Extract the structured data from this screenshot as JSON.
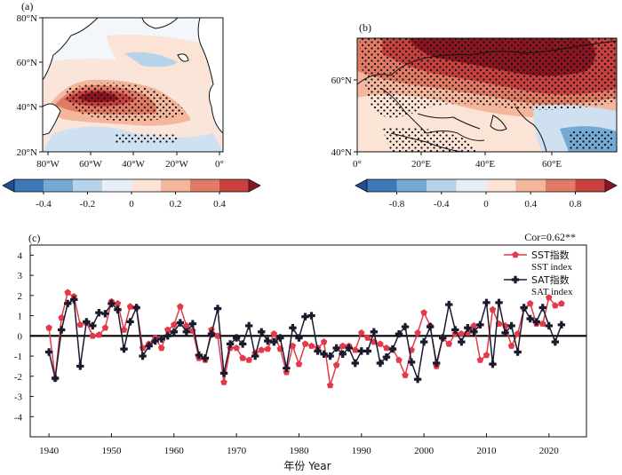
{
  "panel_a": {
    "label": "(a)",
    "lat_ticks": [
      "80°N",
      "60°N",
      "40°N",
      "20°N"
    ],
    "lon_ticks": [
      "80°W",
      "60°W",
      "40°W",
      "20°W",
      "0°"
    ],
    "colorbar_ticks": [
      "-0.4",
      "-0.2",
      "0",
      "0.2",
      "0.4"
    ],
    "colorbar_colors": [
      "#1f4e96",
      "#3d79b8",
      "#74a9d4",
      "#b6d3ea",
      "#e6eff8",
      "#fbe3d6",
      "#f4b69d",
      "#e27b66",
      "#c8413f",
      "#8c1522"
    ]
  },
  "panel_b": {
    "label": "(b)",
    "lat_ticks": [
      "60°N",
      "40°N"
    ],
    "lon_ticks": [
      "0°",
      "20°E",
      "40°E",
      "60°E"
    ],
    "colorbar_ticks": [
      "-0.8",
      "-0.4",
      "0",
      "0.4",
      "0.8"
    ],
    "colorbar_colors": [
      "#1f4e96",
      "#3d79b8",
      "#74a9d4",
      "#b6d3ea",
      "#e6eff8",
      "#fbe3d6",
      "#f4b69d",
      "#e27b66",
      "#c8413f",
      "#8c1522"
    ]
  },
  "chart_data": {
    "type": "line",
    "panel_label": "(c)",
    "annotation": "Cor=0.62**",
    "xlabel": "年份 Year",
    "ylabel": "",
    "xlim": [
      1937,
      2026
    ],
    "ylim": [
      -5,
      4.5
    ],
    "xticks": [
      1940,
      1950,
      1960,
      1970,
      1980,
      1990,
      2000,
      2010,
      2020
    ],
    "yticks": [
      -4,
      -3,
      -2,
      -1,
      0,
      1,
      2,
      3,
      4
    ],
    "x": [
      1940,
      1941,
      1942,
      1943,
      1944,
      1945,
      1946,
      1947,
      1948,
      1949,
      1950,
      1951,
      1952,
      1953,
      1954,
      1955,
      1956,
      1957,
      1958,
      1959,
      1960,
      1961,
      1962,
      1963,
      1964,
      1965,
      1966,
      1967,
      1968,
      1969,
      1970,
      1971,
      1972,
      1973,
      1974,
      1975,
      1976,
      1977,
      1978,
      1979,
      1980,
      1981,
      1982,
      1983,
      1984,
      1985,
      1986,
      1987,
      1988,
      1989,
      1990,
      1991,
      1992,
      1993,
      1994,
      1995,
      1996,
      1997,
      1998,
      1999,
      2000,
      2001,
      2002,
      2003,
      2004,
      2005,
      2006,
      2007,
      2008,
      2009,
      2010,
      2011,
      2012,
      2013,
      2014,
      2015,
      2016,
      2017,
      2018,
      2019,
      2020,
      2021,
      2022
    ],
    "series": [
      {
        "name": "SST指数",
        "name_en": "SST index",
        "color": "#e23a4a",
        "marker": "pentagon",
        "values": [
          0.4,
          -2.1,
          0.9,
          2.15,
          1.95,
          0.55,
          0.65,
          0.0,
          0.05,
          0.4,
          1.7,
          1.6,
          0.3,
          1.45,
          1.4,
          -0.6,
          -0.4,
          -0.1,
          -0.6,
          0.3,
          0.55,
          1.45,
          0.5,
          0.25,
          -1.1,
          -1.2,
          0.3,
          0.0,
          -2.3,
          -0.6,
          -0.6,
          -1.1,
          -1.2,
          -0.85,
          -0.7,
          -0.65,
          0.1,
          -0.65,
          -1.8,
          -0.5,
          -1.4,
          -0.4,
          -0.5,
          -0.6,
          -0.3,
          -2.45,
          -1.45,
          -0.5,
          -0.5,
          -0.7,
          0.15,
          -0.1,
          -0.3,
          -0.4,
          -0.6,
          -0.65,
          -1.2,
          -1.95,
          -0.7,
          0.15,
          1.15,
          0.5,
          -1.5,
          -0.1,
          -0.4,
          0.1,
          0.1,
          0.15,
          0.5,
          -1.2,
          -0.95,
          1.3,
          0.6,
          0.5,
          -0.5,
          0.1,
          1.35,
          1.6,
          0.6,
          0.6,
          1.9,
          1.5,
          1.6
        ]
      },
      {
        "name": "SAT指数",
        "name_en": "SAT index",
        "color": "#1a1a2e",
        "marker": "plus",
        "values": [
          -0.8,
          -2.1,
          0.3,
          1.6,
          1.8,
          -1.5,
          0.7,
          0.5,
          1.15,
          1.1,
          1.6,
          1.3,
          -0.65,
          0.7,
          1.4,
          -1.0,
          -0.5,
          -0.25,
          -0.15,
          0.0,
          0.2,
          0.65,
          0.2,
          0.6,
          -0.95,
          -1.1,
          0.1,
          1.35,
          -1.85,
          -0.4,
          -0.1,
          -0.4,
          0.5,
          -1.0,
          0.2,
          -0.25,
          -0.3,
          -0.1,
          -1.6,
          0.4,
          -0.1,
          0.95,
          1.0,
          -0.75,
          -0.9,
          -1.0,
          -0.6,
          -0.9,
          -0.6,
          -1.35,
          -0.75,
          -0.75,
          0.2,
          -1.35,
          -1.05,
          -0.65,
          0.1,
          0.45,
          -1.3,
          -2.15,
          -0.3,
          0.45,
          -1.35,
          -0.1,
          1.55,
          0.3,
          -0.3,
          0.4,
          0.2,
          0.55,
          1.65,
          -1.4,
          1.65,
          0.15,
          0.5,
          -0.8,
          1.4,
          0.85,
          0.7,
          1.4,
          0.5,
          -0.3,
          0.55
        ]
      }
    ]
  }
}
